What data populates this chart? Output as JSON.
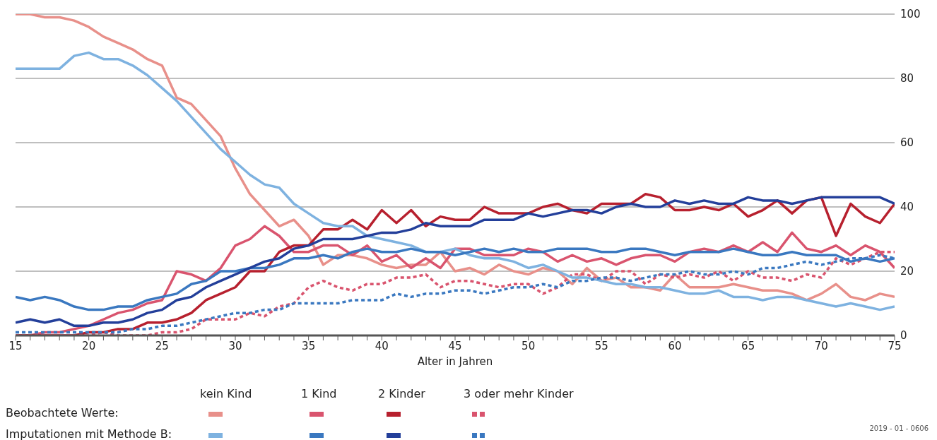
{
  "chart_data": {
    "type": "line",
    "xlabel": "Alter in Jahren",
    "x": [
      15,
      16,
      17,
      18,
      19,
      20,
      21,
      22,
      23,
      24,
      25,
      26,
      27,
      28,
      29,
      30,
      31,
      32,
      33,
      34,
      35,
      36,
      37,
      38,
      39,
      40,
      41,
      42,
      43,
      44,
      45,
      46,
      47,
      48,
      49,
      50,
      51,
      52,
      53,
      54,
      55,
      56,
      57,
      58,
      59,
      60,
      61,
      62,
      63,
      64,
      65,
      66,
      67,
      68,
      69,
      70,
      71,
      72,
      73,
      74,
      75
    ],
    "series": [
      {
        "color": "#e8908a",
        "line_style": "solid",
        "values": [
          100,
          100,
          99,
          99,
          98,
          96,
          93,
          91,
          89,
          86,
          84,
          74,
          72,
          67,
          62,
          52,
          44,
          39,
          34,
          36,
          31,
          22,
          25,
          25,
          24,
          22,
          21,
          22,
          22,
          26,
          20,
          21,
          19,
          22,
          20,
          19,
          21,
          20,
          16,
          21,
          17,
          18,
          15,
          15,
          14,
          19,
          15,
          15,
          15,
          16,
          15,
          14,
          14,
          13,
          11,
          13,
          16,
          12,
          11,
          13,
          12
        ]
      },
      {
        "color": "#d9546e",
        "line_style": "solid",
        "values": [
          0,
          0,
          1,
          1,
          2,
          3,
          5,
          7,
          8,
          10,
          11,
          20,
          19,
          17,
          21,
          28,
          30,
          34,
          31,
          26,
          26,
          28,
          28,
          25,
          28,
          23,
          25,
          21,
          24,
          21,
          27,
          27,
          25,
          25,
          25,
          27,
          26,
          23,
          25,
          23,
          24,
          22,
          24,
          25,
          25,
          23,
          26,
          27,
          26,
          28,
          26,
          29,
          26,
          32,
          27,
          26,
          28,
          25,
          28,
          26,
          21
        ]
      },
      {
        "color": "#b7202e",
        "line_style": "solid",
        "values": [
          0,
          0,
          0,
          0,
          0,
          1,
          1,
          2,
          2,
          4,
          4,
          5,
          7,
          11,
          13,
          15,
          20,
          20,
          26,
          28,
          28,
          33,
          33,
          36,
          33,
          39,
          35,
          39,
          34,
          37,
          36,
          36,
          40,
          38,
          38,
          38,
          40,
          41,
          39,
          38,
          41,
          41,
          41,
          44,
          43,
          39,
          39,
          40,
          39,
          41,
          37,
          39,
          42,
          38,
          42,
          43,
          31,
          41,
          37,
          35,
          41
        ]
      },
      {
        "color": "#d9546e",
        "line_style": "dotted",
        "values": [
          0,
          0,
          0,
          0,
          0,
          0,
          1,
          0,
          0,
          0,
          1,
          1,
          2,
          5,
          5,
          5,
          7,
          6,
          9,
          10,
          15,
          17,
          15,
          14,
          16,
          16,
          18,
          18,
          19,
          15,
          17,
          17,
          16,
          15,
          16,
          16,
          13,
          15,
          19,
          19,
          17,
          20,
          20,
          16,
          19,
          18,
          19,
          18,
          20,
          17,
          20,
          18,
          18,
          17,
          19,
          18,
          24,
          22,
          24,
          26,
          26
        ]
      },
      {
        "color": "#7eb2e0",
        "line_style": "solid",
        "values": [
          83,
          83,
          83,
          83,
          87,
          88,
          86,
          86,
          84,
          81,
          77,
          73,
          68,
          63,
          58,
          54,
          50,
          47,
          46,
          41,
          38,
          35,
          34,
          34,
          31,
          30,
          29,
          28,
          26,
          26,
          27,
          25,
          24,
          24,
          23,
          21,
          22,
          20,
          18,
          18,
          17,
          16,
          16,
          15,
          15,
          14,
          13,
          13,
          14,
          12,
          12,
          11,
          12,
          12,
          11,
          10,
          9,
          10,
          9,
          8,
          9
        ]
      },
      {
        "color": "#3a78c0",
        "line_style": "solid",
        "values": [
          12,
          11,
          12,
          11,
          9,
          8,
          8,
          9,
          9,
          11,
          12,
          13,
          16,
          17,
          20,
          20,
          21,
          21,
          22,
          24,
          24,
          25,
          24,
          26,
          27,
          26,
          26,
          27,
          26,
          26,
          25,
          26,
          27,
          26,
          27,
          26,
          26,
          27,
          27,
          27,
          26,
          26,
          27,
          27,
          26,
          25,
          26,
          26,
          26,
          27,
          26,
          25,
          25,
          26,
          25,
          25,
          25,
          23,
          24,
          23,
          24
        ]
      },
      {
        "color": "#233f9a",
        "line_style": "solid",
        "values": [
          4,
          5,
          4,
          5,
          3,
          3,
          4,
          4,
          5,
          7,
          8,
          11,
          12,
          15,
          17,
          19,
          21,
          23,
          24,
          27,
          28,
          30,
          30,
          30,
          31,
          32,
          32,
          33,
          35,
          34,
          34,
          34,
          36,
          36,
          36,
          38,
          37,
          38,
          39,
          39,
          38,
          40,
          41,
          40,
          40,
          42,
          41,
          42,
          41,
          41,
          43,
          42,
          42,
          41,
          42,
          43,
          43,
          43,
          43,
          43,
          41
        ]
      },
      {
        "color": "#3a78c0",
        "line_style": "dotted",
        "values": [
          1,
          1,
          1,
          1,
          1,
          1,
          1,
          1,
          2,
          2,
          3,
          3,
          4,
          5,
          6,
          7,
          7,
          8,
          8,
          10,
          10,
          10,
          10,
          11,
          11,
          11,
          13,
          12,
          13,
          13,
          14,
          14,
          13,
          14,
          15,
          15,
          16,
          15,
          17,
          17,
          18,
          18,
          17,
          18,
          19,
          19,
          20,
          19,
          19,
          20,
          19,
          21,
          21,
          22,
          23,
          22,
          23,
          24,
          24,
          25,
          24
        ]
      }
    ],
    "xlim": [
      15,
      75
    ],
    "xticks": [
      15,
      {
        "value": 16,
        "label": null
      },
      {
        "value": 17,
        "label": null
      },
      {
        "value": 18,
        "label": null
      },
      {
        "value": 19,
        "label": null
      },
      20,
      {
        "value": 21,
        "label": null
      },
      {
        "value": 22,
        "label": null
      },
      {
        "value": 23,
        "label": null
      },
      {
        "value": 24,
        "label": null
      },
      25,
      {
        "value": 26,
        "label": null
      },
      {
        "value": 27,
        "label": null
      },
      {
        "value": 28,
        "label": null
      },
      {
        "value": 29,
        "label": null
      },
      30,
      {
        "value": 31,
        "label": null
      },
      {
        "value": 32,
        "label": null
      },
      {
        "value": 33,
        "label": null
      },
      {
        "value": 34,
        "label": null
      },
      35,
      {
        "value": 36,
        "label": null
      },
      {
        "value": 37,
        "label": null
      },
      {
        "value": 38,
        "label": null
      },
      {
        "value": 39,
        "label": null
      },
      40,
      {
        "value": 41,
        "label": null
      },
      {
        "value": 42,
        "label": null
      },
      {
        "value": 43,
        "label": null
      },
      {
        "value": 44,
        "label": null
      },
      45,
      {
        "value": 46,
        "label": null
      },
      {
        "value": 47,
        "label": null
      },
      {
        "value": 48,
        "label": null
      },
      {
        "value": 49,
        "label": null
      },
      50,
      {
        "value": 51,
        "label": null
      },
      {
        "value": 52,
        "label": null
      },
      {
        "value": 53,
        "label": null
      },
      {
        "value": 54,
        "label": null
      },
      55,
      {
        "value": 56,
        "label": null
      },
      {
        "value": 57,
        "label": null
      },
      {
        "value": 58,
        "label": null
      },
      {
        "value": 59,
        "label": null
      },
      60,
      {
        "value": 61,
        "label": null
      },
      {
        "value": 62,
        "label": null
      },
      {
        "value": 63,
        "label": null
      },
      {
        "value": 64,
        "label": null
      },
      65,
      {
        "value": 66,
        "label": null
      },
      {
        "value": 67,
        "label": null
      },
      {
        "value": 68,
        "label": null
      },
      {
        "value": 69,
        "label": null
      },
      70,
      {
        "value": 71,
        "label": null
      },
      {
        "value": 72,
        "label": null
      },
      {
        "value": 73,
        "label": null
      },
      {
        "value": 74,
        "label": null
      },
      75
    ],
    "ylim": [
      0,
      100
    ],
    "yticks": [
      0,
      20,
      40,
      60,
      80,
      100
    ],
    "grid": "y",
    "marker": "none",
    "annotations": [
      "kein Kind",
      "1 Kind",
      "2 Kinder",
      "3 oder mehr Kinder",
      "Beobachtete Werte:",
      "Imputationen mit Methode B:",
      "2019 - 01 - 0606"
    ]
  }
}
